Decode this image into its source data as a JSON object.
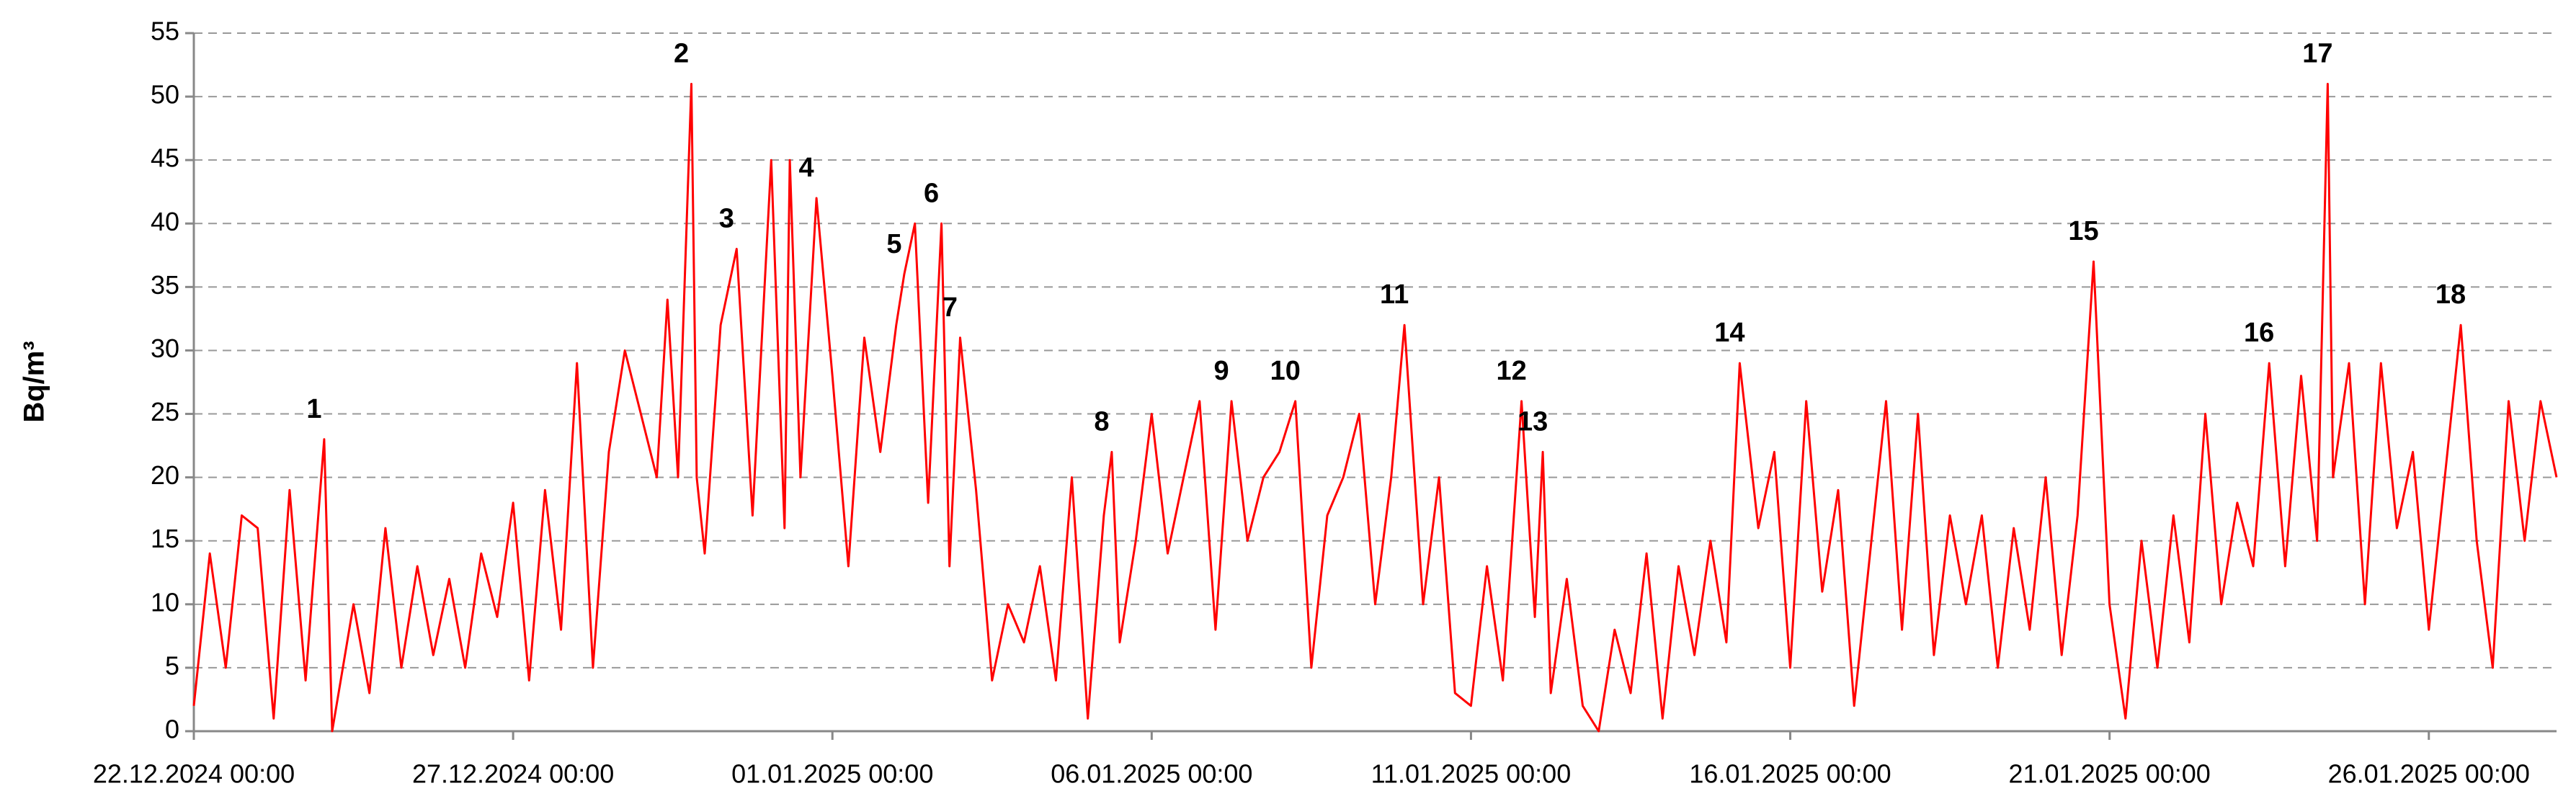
{
  "chart_data": {
    "type": "line",
    "y_label": "Bq/m³",
    "xlim": [
      "22.12.2024 00:00",
      "28.01.2025 00:00"
    ],
    "xticks": [
      "22.12.2024 00:00",
      "27.12.2024 00:00",
      "01.01.2025 00:00",
      "06.01.2025 00:00",
      "11.01.2025 00:00",
      "16.01.2025 00:00",
      "21.01.2025 00:00",
      "26.01.2025 00:00"
    ],
    "ylim": [
      0,
      55
    ],
    "yticks": [
      0,
      5,
      10,
      15,
      20,
      25,
      30,
      35,
      40,
      45,
      50,
      55
    ],
    "grid": true,
    "x": [
      "22.12.2024 00:00",
      "22.12.2024 06:00",
      "22.12.2024 12:00",
      "22.12.2024 18:00",
      "23.12.2024 00:00",
      "23.12.2024 06:00",
      "23.12.2024 12:00",
      "23.12.2024 18:00",
      "24.12.2024 01:00",
      "24.12.2024 04:00",
      "24.12.2024 12:00",
      "24.12.2024 18:00",
      "25.12.2024 00:00",
      "25.12.2024 06:00",
      "25.12.2024 12:00",
      "25.12.2024 18:00",
      "26.12.2024 00:00",
      "26.12.2024 06:00",
      "26.12.2024 12:00",
      "26.12.2024 18:00",
      "27.12.2024 00:00",
      "27.12.2024 06:00",
      "27.12.2024 12:00",
      "27.12.2024 18:00",
      "28.12.2024 00:00",
      "28.12.2024 06:00",
      "28.12.2024 12:00",
      "28.12.2024 18:00",
      "29.12.2024 00:00",
      "29.12.2024 06:00",
      "29.12.2024 10:00",
      "29.12.2024 14:00",
      "29.12.2024 19:00",
      "29.12.2024 21:00",
      "30.12.2024 00:00",
      "30.12.2024 06:00",
      "30.12.2024 12:00",
      "30.12.2024 18:00",
      "31.12.2024 01:00",
      "31.12.2024 06:00",
      "31.12.2024 08:00",
      "31.12.2024 12:00",
      "31.12.2024 18:00",
      "01.01.2025 00:00",
      "01.01.2025 06:00",
      "01.01.2025 12:00",
      "01.01.2025 18:00",
      "02.01.2025 00:00",
      "02.01.2025 03:00",
      "02.01.2025 07:00",
      "02.01.2025 12:00",
      "02.01.2025 17:00",
      "02.01.2025 20:00",
      "03.01.2025 00:00",
      "03.01.2025 06:00",
      "03.01.2025 12:00",
      "03.01.2025 18:00",
      "04.01.2025 00:00",
      "04.01.2025 06:00",
      "04.01.2025 12:00",
      "04.01.2025 18:00",
      "05.01.2025 00:00",
      "05.01.2025 06:00",
      "05.01.2025 09:00",
      "05.01.2025 12:00",
      "05.01.2025 18:00",
      "06.01.2025 00:00",
      "06.01.2025 06:00",
      "06.01.2025 12:00",
      "06.01.2025 18:00",
      "07.01.2025 00:00",
      "07.01.2025 06:00",
      "07.01.2025 12:00",
      "07.01.2025 18:00",
      "08.01.2025 00:00",
      "08.01.2025 06:00",
      "08.01.2025 12:00",
      "08.01.2025 18:00",
      "09.01.2025 00:00",
      "09.01.2025 06:00",
      "09.01.2025 12:00",
      "09.01.2025 18:00",
      "09.01.2025 23:00",
      "10.01.2025 06:00",
      "10.01.2025 12:00",
      "10.01.2025 18:00",
      "11.01.2025 00:00",
      "11.01.2025 06:00",
      "11.01.2025 12:00",
      "11.01.2025 19:00",
      "12.01.2025 00:00",
      "12.01.2025 03:00",
      "12.01.2025 06:00",
      "12.01.2025 12:00",
      "12.01.2025 18:00",
      "13.01.2025 00:00",
      "13.01.2025 06:00",
      "13.01.2025 12:00",
      "13.01.2025 18:00",
      "14.01.2025 00:00",
      "14.01.2025 06:00",
      "14.01.2025 12:00",
      "14.01.2025 18:00",
      "15.01.2025 00:00",
      "15.01.2025 05:00",
      "15.01.2025 12:00",
      "15.01.2025 18:00",
      "16.01.2025 00:00",
      "16.01.2025 06:00",
      "16.01.2025 12:00",
      "16.01.2025 18:00",
      "17.01.2025 00:00",
      "17.01.2025 06:00",
      "17.01.2025 12:00",
      "17.01.2025 18:00",
      "18.01.2025 00:00",
      "18.01.2025 06:00",
      "18.01.2025 12:00",
      "18.01.2025 18:00",
      "19.01.2025 00:00",
      "19.01.2025 06:00",
      "19.01.2025 12:00",
      "19.01.2025 18:00",
      "20.01.2025 00:00",
      "20.01.2025 06:00",
      "20.01.2025 12:00",
      "20.01.2025 18:00",
      "21.01.2025 00:00",
      "21.01.2025 06:00",
      "21.01.2025 12:00",
      "21.01.2025 18:00",
      "22.01.2025 00:00",
      "22.01.2025 06:00",
      "22.01.2025 12:00",
      "22.01.2025 18:00",
      "23.01.2025 00:00",
      "23.01.2025 06:00",
      "23.01.2025 12:00",
      "23.01.2025 18:00",
      "24.01.2025 00:00",
      "24.01.2025 06:00",
      "24.01.2025 10:00",
      "24.01.2025 12:00",
      "24.01.2025 18:00",
      "25.01.2025 00:00",
      "25.01.2025 06:00",
      "25.01.2025 12:00",
      "25.01.2025 18:00",
      "26.01.2025 00:00",
      "26.01.2025 06:00",
      "26.01.2025 12:00",
      "26.01.2025 18:00",
      "27.01.2025 00:00",
      "27.01.2025 06:00",
      "27.01.2025 12:00",
      "27.01.2025 18:00",
      "28.01.2025 00:00"
    ],
    "series": [
      {
        "color": "#ff0000",
        "values": [
          2,
          14,
          5,
          17,
          16,
          1,
          19,
          4,
          23,
          0,
          10,
          3,
          16,
          5,
          13,
          6,
          12,
          5,
          14,
          9,
          18,
          4,
          19,
          8,
          29,
          5,
          22,
          30,
          25,
          20,
          34,
          20,
          51,
          20,
          14,
          32,
          38,
          17,
          45,
          16,
          45,
          20,
          42,
          28,
          13,
          31,
          22,
          32,
          36,
          40,
          18,
          40,
          13,
          31,
          19,
          4,
          10,
          7,
          13,
          4,
          20,
          1,
          17,
          22,
          7,
          15,
          25,
          14,
          20,
          26,
          8,
          26,
          15,
          20,
          22,
          26,
          5,
          17,
          20,
          25,
          10,
          20,
          32,
          10,
          20,
          3,
          2,
          13,
          4,
          26,
          9,
          22,
          3,
          12,
          2,
          0,
          8,
          3,
          14,
          1,
          13,
          6,
          15,
          7,
          29,
          16,
          22,
          5,
          26,
          11,
          19,
          2,
          14,
          26,
          8,
          25,
          6,
          17,
          10,
          17,
          5,
          16,
          8,
          20,
          6,
          17,
          37,
          10,
          1,
          15,
          5,
          17,
          7,
          25,
          10,
          18,
          13,
          29,
          13,
          28,
          15,
          51,
          20,
          29,
          10,
          29,
          16,
          22,
          8,
          20,
          32,
          15,
          5,
          26,
          15,
          26,
          20
        ]
      }
    ],
    "annotations": [
      {
        "text": "1",
        "x": "24.12.2024 01:00"
      },
      {
        "text": "2",
        "x": "29.12.2024 19:00"
      },
      {
        "text": "3",
        "x": "30.12.2024 12:00"
      },
      {
        "text": "4",
        "x": "31.12.2024 18:00"
      },
      {
        "text": "5",
        "x": "02.01.2025 03:00"
      },
      {
        "text": "6",
        "x": "02.01.2025 17:00"
      },
      {
        "text": "7",
        "x": "03.01.2025 00:00"
      },
      {
        "text": "8",
        "x": "05.01.2025 09:00"
      },
      {
        "text": "9",
        "x": "07.01.2025 06:00"
      },
      {
        "text": "10",
        "x": "08.01.2025 06:00"
      },
      {
        "text": "11",
        "x": "09.01.2025 23:00"
      },
      {
        "text": "12",
        "x": "11.01.2025 19:00"
      },
      {
        "text": "13",
        "x": "12.01.2025 03:00"
      },
      {
        "text": "14",
        "x": "15.01.2025 05:00"
      },
      {
        "text": "15",
        "x": "20.01.2025 18:00"
      },
      {
        "text": "16",
        "x": "23.01.2025 12:00"
      },
      {
        "text": "17",
        "x": "24.01.2025 10:00"
      },
      {
        "text": "18",
        "x": "26.01.2025 12:00"
      }
    ]
  }
}
